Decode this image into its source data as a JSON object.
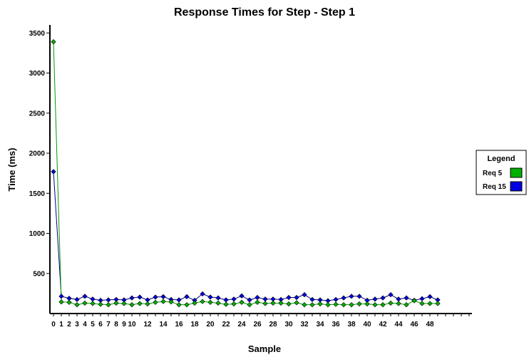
{
  "chart_data": {
    "type": "line",
    "title": "Response Times for Step - Step 1",
    "xlabel": "Sample",
    "ylabel": "Time (ms)",
    "xlim": [
      0,
      53
    ],
    "ylim": [
      0,
      3600
    ],
    "yticks": [
      500,
      1000,
      1500,
      2000,
      2500,
      3000,
      3500
    ],
    "xtick_labels": [
      "0",
      "1",
      "2",
      "3",
      "4",
      "5",
      "6",
      "7",
      "8",
      "9",
      "10",
      "12",
      "14",
      "16",
      "18",
      "20",
      "22",
      "24",
      "26",
      "28",
      "30",
      "32",
      "34",
      "36",
      "38",
      "40",
      "42",
      "44",
      "46",
      "48"
    ],
    "xtick_values": [
      0,
      1,
      2,
      3,
      4,
      5,
      6,
      7,
      8,
      9,
      10,
      12,
      14,
      16,
      18,
      20,
      22,
      24,
      26,
      28,
      30,
      32,
      34,
      36,
      38,
      40,
      42,
      44,
      46,
      48
    ],
    "legend": {
      "title": "Legend",
      "placement": "right"
    },
    "series": [
      {
        "name": "Req 5",
        "color": "#00b000",
        "line_color": "#009900",
        "x": [
          0,
          1,
          2,
          3,
          4,
          5,
          6,
          7,
          8,
          9,
          10,
          11,
          12,
          13,
          14,
          15,
          16,
          17,
          18,
          19,
          20,
          21,
          22,
          23,
          24,
          25,
          26,
          27,
          28,
          29,
          30,
          31,
          32,
          33,
          34,
          35,
          36,
          37,
          38,
          39,
          40,
          41,
          42,
          43,
          44,
          45,
          46,
          47,
          48,
          49
        ],
        "values": [
          3390,
          145,
          140,
          110,
          130,
          125,
          115,
          110,
          130,
          125,
          110,
          125,
          120,
          140,
          150,
          145,
          110,
          110,
          130,
          150,
          140,
          130,
          115,
          120,
          140,
          110,
          140,
          125,
          130,
          130,
          120,
          135,
          110,
          110,
          120,
          110,
          115,
          110,
          110,
          120,
          120,
          110,
          110,
          130,
          125,
          110,
          160,
          125,
          125,
          125
        ]
      },
      {
        "name": "Req 15",
        "color": "#0000e0",
        "line_color": "#000088",
        "x": [
          0,
          1,
          2,
          3,
          4,
          5,
          6,
          7,
          8,
          9,
          10,
          11,
          12,
          13,
          14,
          15,
          16,
          17,
          18,
          19,
          20,
          21,
          22,
          23,
          24,
          25,
          26,
          27,
          28,
          29,
          30,
          31,
          32,
          33,
          34,
          35,
          36,
          37,
          38,
          39,
          40,
          41,
          42,
          43,
          44,
          45,
          46,
          47,
          48,
          49
        ],
        "values": [
          1770,
          215,
          190,
          175,
          215,
          180,
          165,
          170,
          175,
          170,
          195,
          205,
          170,
          205,
          210,
          175,
          170,
          210,
          165,
          245,
          205,
          195,
          170,
          180,
          220,
          170,
          200,
          180,
          180,
          175,
          200,
          200,
          235,
          175,
          170,
          160,
          175,
          195,
          215,
          215,
          165,
          180,
          195,
          235,
          180,
          195,
          165,
          185,
          210,
          170
        ]
      }
    ]
  }
}
